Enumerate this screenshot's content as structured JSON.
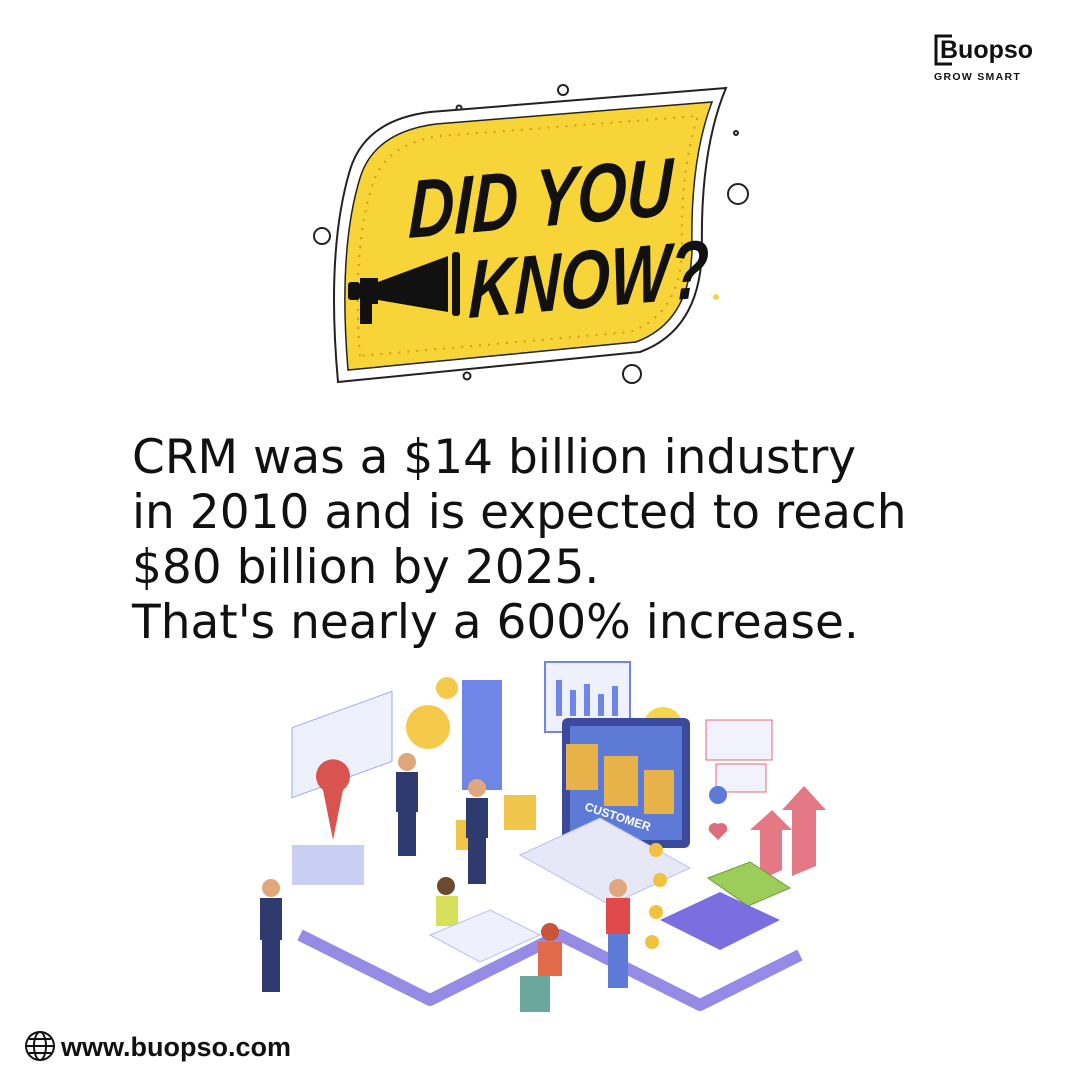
{
  "brand": {
    "name": "Buopso",
    "tagline": "GROW SMART"
  },
  "headline": {
    "line1": "DID YOU",
    "line2": "KNOW?"
  },
  "fact": {
    "lines": [
      "CRM was a $14 billion industry",
      "in 2010 and is expected to reach",
      "$80 billion by 2025.",
      "That's nearly a 600% increase."
    ]
  },
  "illustration": {
    "screen_label": "CUSTOMER"
  },
  "footer": {
    "website": "www.buopso.com"
  }
}
